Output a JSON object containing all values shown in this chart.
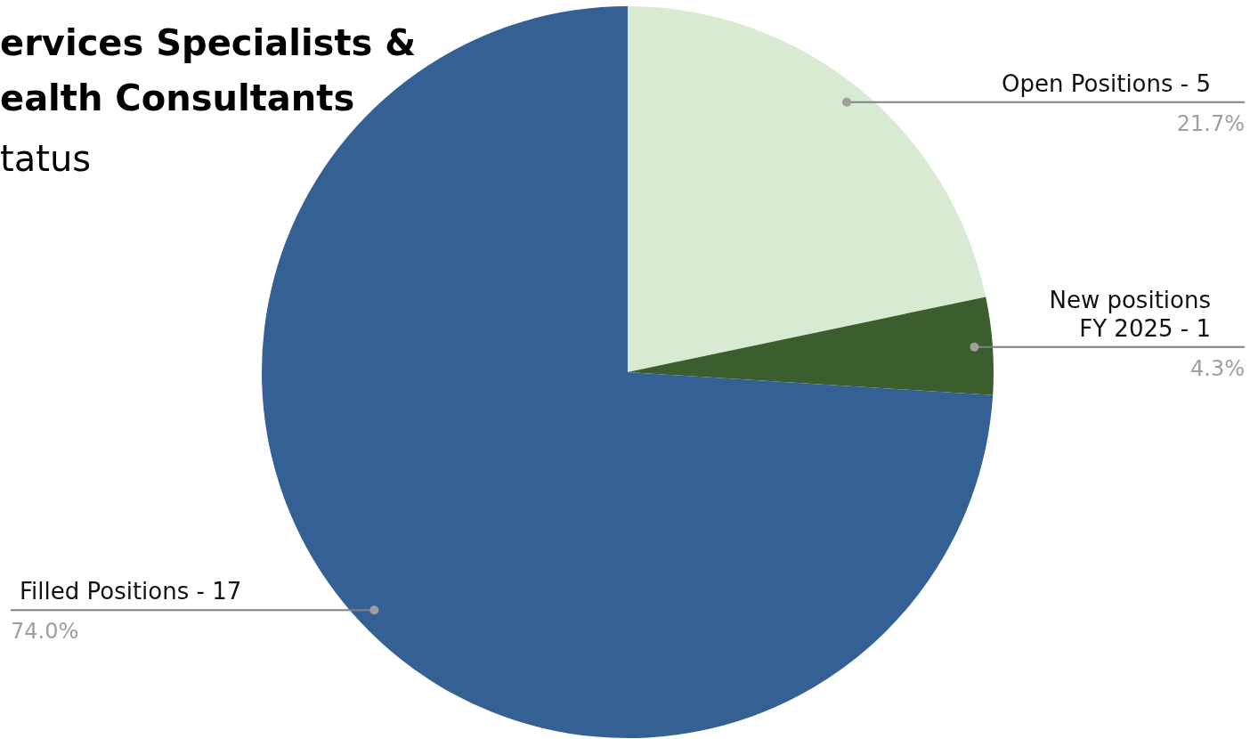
{
  "chart_data": {
    "type": "pie",
    "title": "ervices Specialists &\nealth Consultants",
    "subtitle": "tatus",
    "categories": [
      "Open Positions - 5",
      "New positions\nFY 2025 - 1",
      "Filled Positions - 17"
    ],
    "values": [
      21.7,
      4.3,
      74.0
    ],
    "value_labels": [
      "21.7%",
      "4.3%",
      "74.0%"
    ],
    "colors": [
      "#d9ead3",
      "#3b5e2f",
      "#346094"
    ],
    "legend": false
  }
}
